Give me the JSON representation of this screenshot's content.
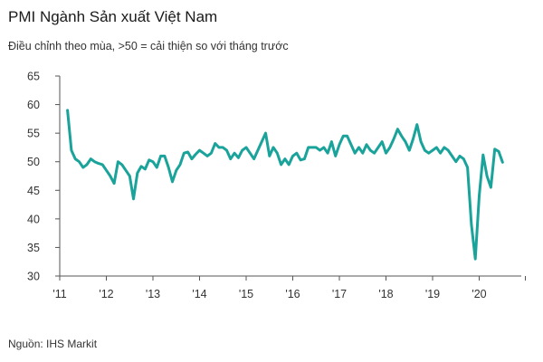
{
  "header": {
    "title": "PMI Ngành Sản xuất Việt Nam",
    "subtitle": "Điều chỉnh theo mùa, >50 = cải thiện so với tháng trước"
  },
  "footer": {
    "source": "Nguồn:  IHS Markit"
  },
  "colors": {
    "line": "#1aa39a",
    "axis": "#555555",
    "grid": "#cccccc"
  },
  "chart_data": {
    "type": "line",
    "title": "PMI Ngành Sản xuất Việt Nam",
    "subtitle": "Điều chỉnh theo mùa, >50 = cải thiện so với tháng trước",
    "xlabel": "",
    "ylabel": "",
    "ylim": [
      30,
      65
    ],
    "yticks": [
      30,
      35,
      40,
      45,
      50,
      55,
      60,
      65
    ],
    "xticks": [
      "'11",
      "'12",
      "'13",
      "'14",
      "'15",
      "'16",
      "'17",
      "'18",
      "'19",
      "'20"
    ],
    "xlim": [
      "2011-01",
      "2020-12"
    ],
    "grid": false,
    "series": [
      {
        "x_start": "2011-03",
        "frequency": "monthly",
        "values": [
          59.0,
          52.0,
          50.5,
          50.0,
          49.0,
          49.5,
          50.5,
          50.0,
          49.7,
          49.5,
          48.5,
          47.5,
          46.2,
          50.0,
          49.5,
          48.5,
          47.5,
          43.5,
          48.0,
          49.2,
          48.7,
          50.3,
          50.0,
          49.0,
          51.0,
          51.0,
          49.0,
          46.5,
          48.5,
          49.5,
          51.5,
          51.7,
          50.5,
          51.3,
          52.0,
          51.5,
          51.0,
          51.5,
          53.2,
          52.5,
          52.5,
          52.0,
          50.5,
          51.5,
          50.7,
          52.0,
          52.5,
          51.5,
          50.5,
          52.0,
          53.5,
          55.0,
          51.0,
          52.5,
          51.5,
          49.5,
          50.5,
          49.5,
          51.0,
          51.5,
          50.3,
          50.5,
          52.5,
          52.5,
          52.5,
          52.0,
          52.5,
          51.5,
          53.5,
          51.0,
          53.0,
          54.5,
          54.5,
          53.0,
          51.5,
          52.5,
          51.5,
          53.0,
          52.0,
          51.5,
          52.5,
          53.5,
          51.5,
          52.5,
          54.0,
          55.7,
          54.5,
          53.5,
          52.0,
          54.0,
          56.5,
          53.5,
          52.0,
          51.5,
          52.0,
          52.5,
          51.5,
          52.5,
          52.0,
          51.0,
          50.0,
          51.0,
          50.5,
          49.0,
          39.0,
          33.0,
          44.0,
          51.2,
          47.5,
          45.5,
          52.2,
          51.8,
          49.9
        ]
      }
    ]
  }
}
